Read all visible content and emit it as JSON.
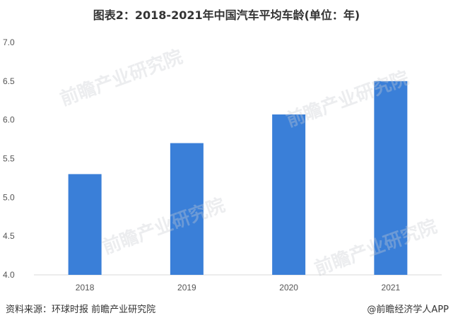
{
  "chart_data": {
    "type": "bar",
    "title": "图表2：2018-2021年中国汽车平均车龄(单位：年)",
    "categories": [
      "2018",
      "2019",
      "2020",
      "2021"
    ],
    "values": [
      5.3,
      5.7,
      6.07,
      6.5
    ],
    "ylim": [
      4.0,
      7.0
    ],
    "yticks": [
      "4.0",
      "4.5",
      "5.0",
      "5.5",
      "6.0",
      "6.5",
      "7.0"
    ],
    "xlabel": "",
    "ylabel": "",
    "grid": false,
    "colors": {
      "bar": "#3a7fd8",
      "axis": "#d9d9d9"
    }
  },
  "footer": {
    "source": "资料来源：环球时报 前瞻产业研究院",
    "credit": "@前瞻经济学人APP"
  },
  "watermark": "前瞻产业研究院"
}
